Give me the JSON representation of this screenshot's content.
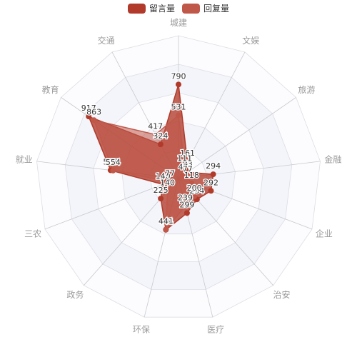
{
  "chart_data": {
    "type": "radar",
    "legend_placement": "top-center",
    "indicators": [
      "城建",
      "文娱",
      "旅游",
      "金融",
      "企业",
      "治安",
      "医疗",
      "环保",
      "政务",
      "三农",
      "就业",
      "教育",
      "交通"
    ],
    "max": 1200,
    "series": [
      {
        "name": "留言量",
        "color": "#b13a2a",
        "values": [
          790,
          161,
          93,
          294,
          292,
          234,
          299,
          444,
          225,
          140,
          575,
          917,
          324
        ],
        "labels": [
          "790",
          "161",
          "93",
          "294",
          "292",
          "234",
          "299",
          "444",
          "225",
          "140",
          "575",
          "917",
          "324"
        ]
      },
      {
        "name": "回复量",
        "color": "#c0584a",
        "values": [
          531,
          111,
          47,
          77,
          118,
          200,
          239,
          441,
          140,
          77,
          554,
          863,
          417
        ],
        "labels": [
          "531",
          "111",
          "47",
          "77",
          "118",
          "200",
          "239",
          "441",
          "140",
          "77",
          "554",
          "863",
          "417"
        ]
      }
    ]
  }
}
